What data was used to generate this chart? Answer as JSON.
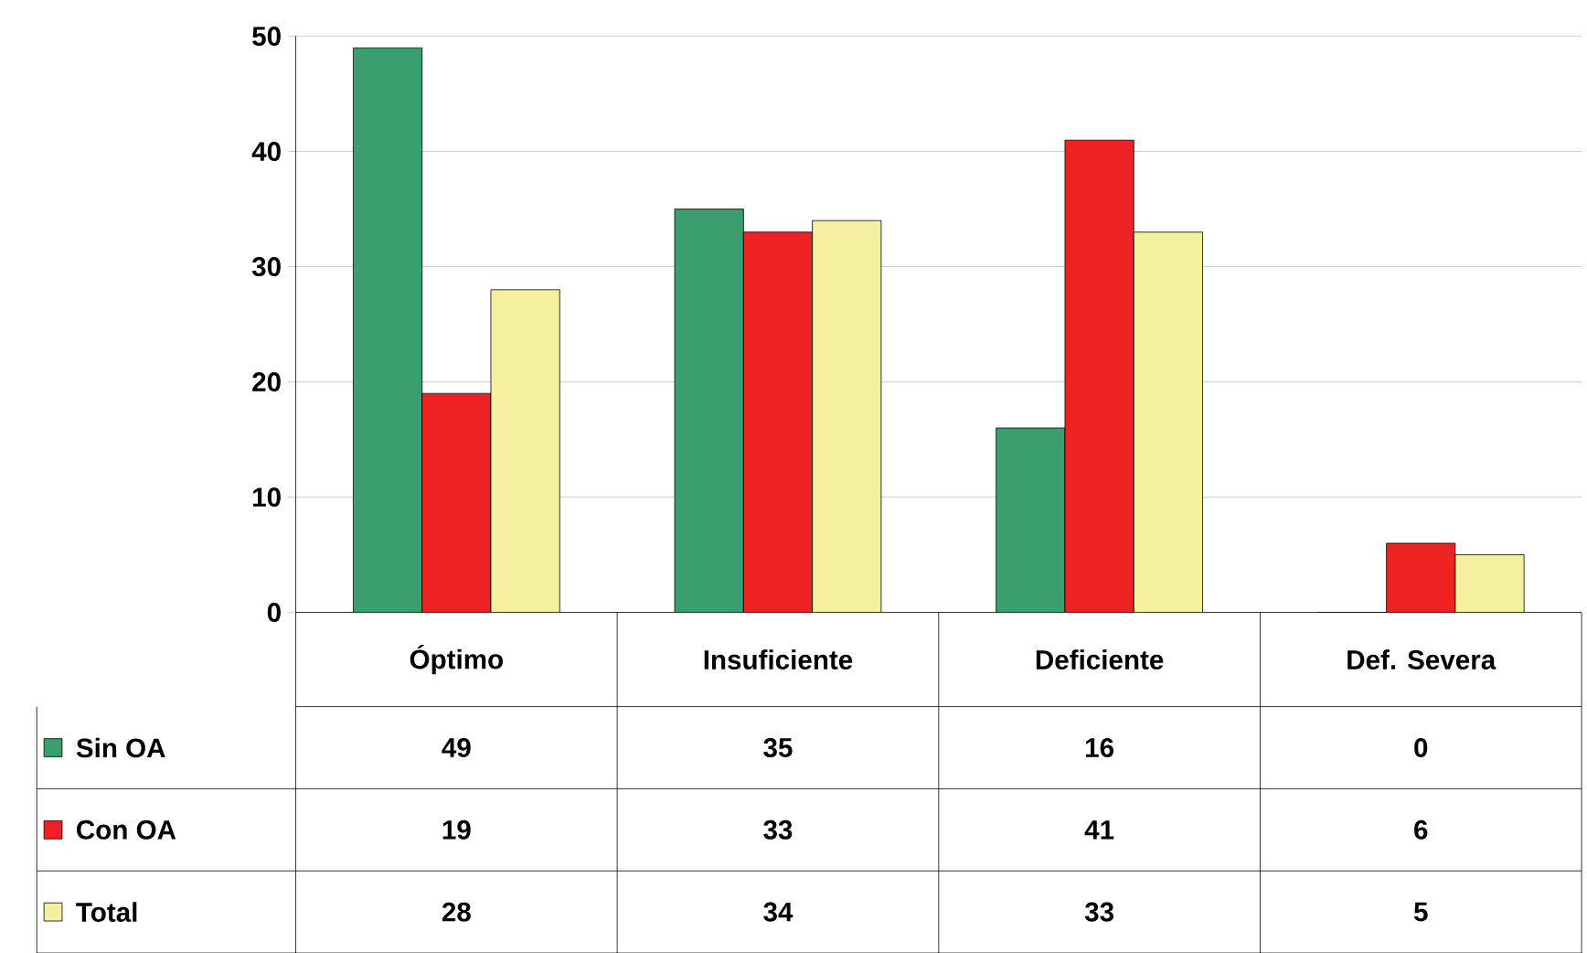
{
  "chart_data": {
    "type": "bar",
    "categories": [
      "Óptimo",
      "Insuficiente",
      "Deficiente",
      "Def. Severa"
    ],
    "series": [
      {
        "name": "Sin   OA",
        "color": "#3a9e6e",
        "values": [
          49,
          35,
          16,
          0
        ]
      },
      {
        "name": "Con OA",
        "color": "#ee2222",
        "values": [
          19,
          33,
          41,
          6
        ]
      },
      {
        "name": "Total",
        "color": "#f5f0a0",
        "values": [
          28,
          34,
          33,
          5
        ]
      }
    ],
    "ylim": [
      0,
      50
    ],
    "yticks": [
      0,
      10,
      20,
      30,
      40,
      50
    ],
    "grid": "y",
    "legend": "bottom left",
    "data_labels": true
  }
}
